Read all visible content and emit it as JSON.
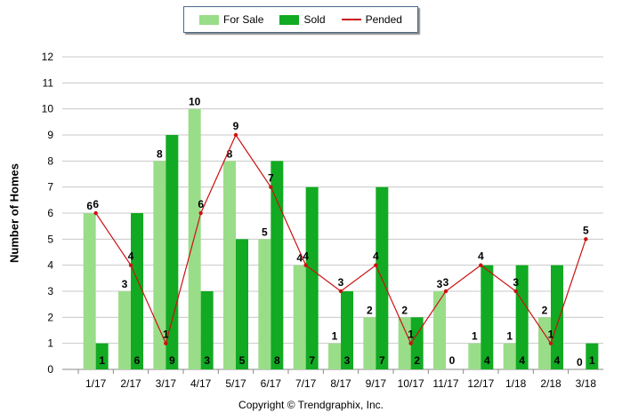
{
  "chart_data": {
    "type": "bar",
    "categories": [
      "1/17",
      "2/17",
      "3/17",
      "4/17",
      "5/17",
      "6/17",
      "7/17",
      "8/17",
      "9/17",
      "10/17",
      "11/17",
      "12/17",
      "1/18",
      "2/18",
      "3/18"
    ],
    "series": [
      {
        "name": "For Sale",
        "type": "bar",
        "color": "#99dd88",
        "values": [
          6,
          3,
          8,
          10,
          8,
          5,
          4,
          1,
          2,
          2,
          3,
          1,
          1,
          2,
          0
        ]
      },
      {
        "name": "Sold",
        "type": "bar",
        "color": "#11aa22",
        "values": [
          1,
          6,
          9,
          3,
          5,
          8,
          7,
          3,
          7,
          2,
          0,
          4,
          4,
          4,
          1
        ]
      },
      {
        "name": "Pended",
        "type": "line",
        "color": "#cc1111",
        "values": [
          6,
          4,
          1,
          6,
          9,
          7,
          4,
          3,
          4,
          1,
          3,
          4,
          3,
          1,
          5
        ]
      }
    ],
    "ylabel": "Number of Homes",
    "ylim": [
      0,
      12
    ],
    "yticks": [
      0,
      1,
      2,
      3,
      4,
      5,
      6,
      7,
      8,
      9,
      10,
      11,
      12
    ],
    "grid": true,
    "legend_position": "top-center"
  },
  "legend": {
    "for_sale": "For Sale",
    "sold": "Sold",
    "pended": "Pended"
  },
  "copyright": "Copyright © Trendgraphix, Inc."
}
